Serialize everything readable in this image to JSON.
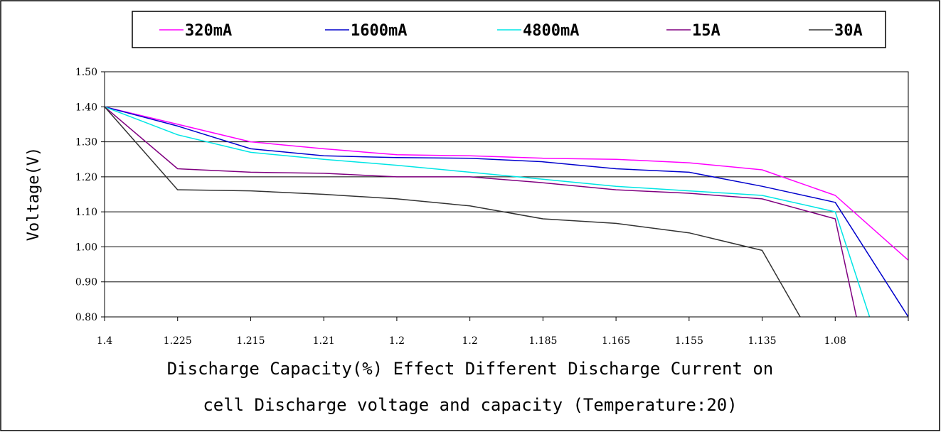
{
  "chart_data": {
    "type": "line",
    "title": "",
    "ylabel": "Voltage(V)",
    "xlabel_lines": [
      "Discharge Capacity(%) Effect Different Discharge Current on",
      "cell Discharge voltage and capacity (Temperature:20)"
    ],
    "categories": [
      "1.4",
      "1.225",
      "1.215",
      "1.21",
      "1.2",
      "1.2",
      "1.185",
      "1.165",
      "1.155",
      "1.135",
      "1.08"
    ],
    "ylim": [
      0.8,
      1.5
    ],
    "y_ticks": [
      "0.80",
      "0.90",
      "1.00",
      "1.10",
      "1.20",
      "1.30",
      "1.40",
      "1.50"
    ],
    "grid": true,
    "legend_position": "top",
    "series": [
      {
        "name": "320mA",
        "color": "#ff00ff",
        "x": [
          0,
          1,
          2,
          3,
          4,
          5,
          6,
          7,
          8,
          9,
          10,
          11
        ],
        "y": [
          1.4,
          1.35,
          1.3,
          1.28,
          1.263,
          1.26,
          1.253,
          1.25,
          1.24,
          1.22,
          1.147,
          0.962
        ]
      },
      {
        "name": "1600mA",
        "color": "#0000cc",
        "x": [
          0,
          1,
          2,
          3,
          4,
          5,
          6,
          7,
          8,
          9,
          10,
          11
        ],
        "y": [
          1.4,
          1.345,
          1.28,
          1.26,
          1.255,
          1.253,
          1.243,
          1.223,
          1.213,
          1.173,
          1.127,
          0.8
        ]
      },
      {
        "name": "4800mA",
        "color": "#00e5e5",
        "x": [
          0,
          1,
          2,
          3,
          4,
          5,
          6,
          7,
          8,
          9,
          10,
          10.47
        ],
        "y": [
          1.4,
          1.32,
          1.27,
          1.25,
          1.233,
          1.213,
          1.193,
          1.173,
          1.16,
          1.147,
          1.1,
          0.8
        ]
      },
      {
        "name": "15A",
        "color": "#800080",
        "x": [
          0,
          1,
          2,
          3,
          4,
          5,
          6,
          7,
          8,
          9,
          10,
          10.29
        ],
        "y": [
          1.4,
          1.223,
          1.213,
          1.21,
          1.2,
          1.2,
          1.183,
          1.163,
          1.153,
          1.137,
          1.08,
          0.8
        ]
      },
      {
        "name": "30A",
        "color": "#333333",
        "x": [
          0,
          1,
          2,
          3,
          4,
          5,
          6,
          7,
          8,
          9,
          9.52
        ],
        "y": [
          1.4,
          1.163,
          1.16,
          1.15,
          1.137,
          1.117,
          1.08,
          1.067,
          1.04,
          0.99,
          0.8
        ]
      }
    ]
  }
}
